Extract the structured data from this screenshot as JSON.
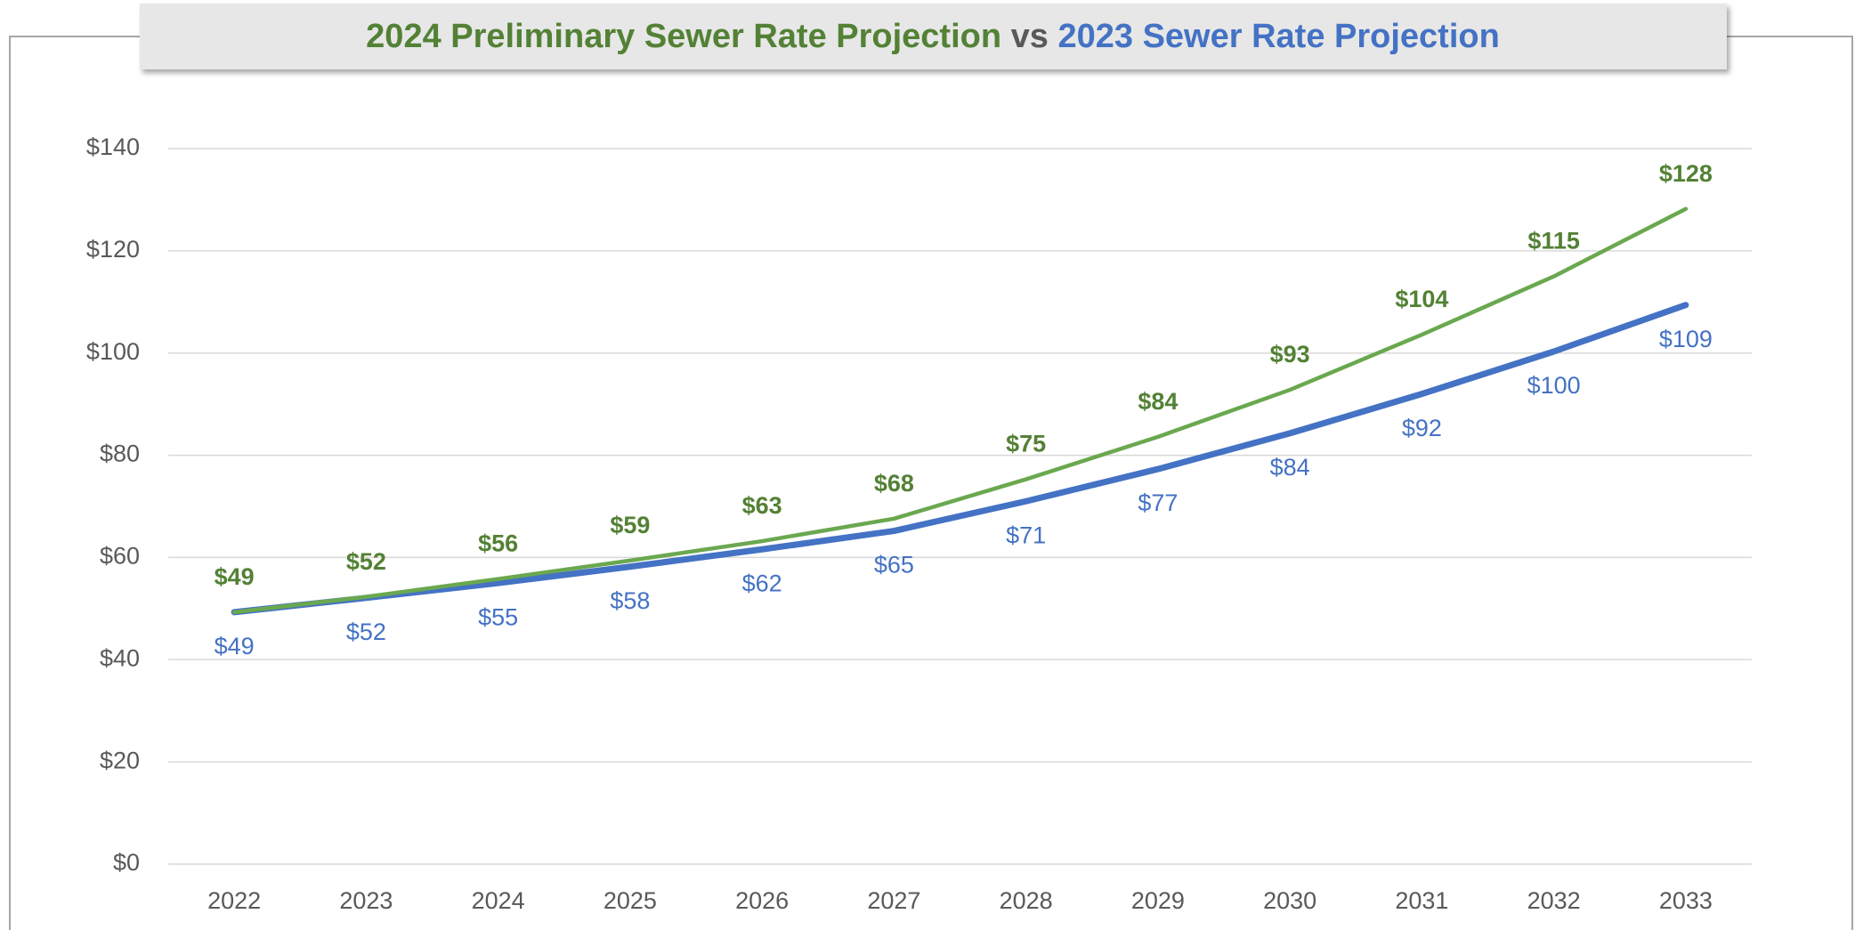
{
  "chart_data": {
    "type": "line",
    "title_connector": "vs",
    "categories": [
      "2022",
      "2023",
      "2024",
      "2025",
      "2026",
      "2027",
      "2028",
      "2029",
      "2030",
      "2031",
      "2032",
      "2033"
    ],
    "series": [
      {
        "name": "2024 Preliminary Sewer Rate Projection",
        "color": "#6aa84f",
        "label_color": "#538135",
        "values": [
          49.3,
          52.3,
          55.8,
          59.4,
          63.2,
          67.6,
          75.3,
          83.6,
          92.8,
          103.6,
          115.0,
          128.2
        ],
        "value_labels": [
          "$49",
          "$52",
          "$56",
          "$59",
          "$63",
          "$68",
          "$75",
          "$84",
          "$93",
          "$104",
          "$115",
          "$128"
        ]
      },
      {
        "name": "2023 Sewer Rate Projection",
        "color": "#4472c4",
        "label_color": "#4472c4",
        "values": [
          49.3,
          52.1,
          55.0,
          58.2,
          61.6,
          65.2,
          71.0,
          77.3,
          84.3,
          92.0,
          100.3,
          109.4
        ],
        "value_labels": [
          "$49",
          "$52",
          "$55",
          "$58",
          "$62",
          "$65",
          "$71",
          "$77",
          "$84",
          "$92",
          "$100",
          "$109"
        ]
      }
    ],
    "ylim": [
      0,
      140
    ],
    "yticks": [
      {
        "value": 0,
        "label": "$0"
      },
      {
        "value": 20,
        "label": "$20"
      },
      {
        "value": 40,
        "label": "$40"
      },
      {
        "value": 60,
        "label": "$60"
      },
      {
        "value": 80,
        "label": "$80"
      },
      {
        "value": 100,
        "label": "$100"
      },
      {
        "value": 120,
        "label": "$120"
      },
      {
        "value": 140,
        "label": "$140"
      }
    ],
    "grid": true
  }
}
